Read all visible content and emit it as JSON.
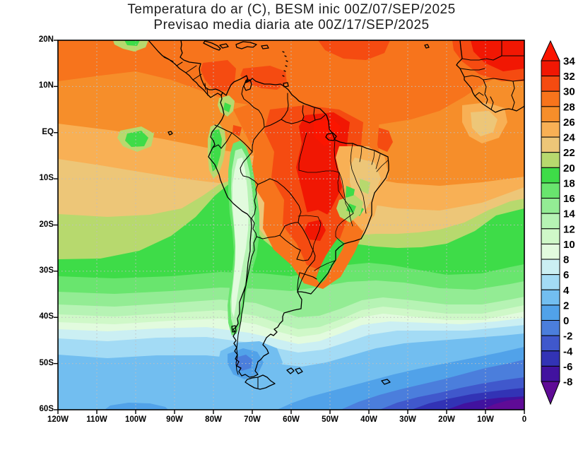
{
  "title": {
    "line1": "Temperatura do ar (C), BESM inic 00Z/07/SEP/2025",
    "line2": "Previsao media diaria ate 00Z/17/SEP/2025"
  },
  "axes": {
    "lat_ticks": [
      "20N",
      "10N",
      "EQ",
      "10S",
      "20S",
      "30S",
      "40S",
      "50S",
      "60S"
    ],
    "lon_ticks": [
      "120W",
      "110W",
      "100W",
      "90W",
      "80W",
      "70W",
      "60W",
      "50W",
      "40W",
      "30W",
      "20W",
      "10W",
      "0"
    ]
  },
  "colorbar": {
    "labels": [
      "34",
      "32",
      "30",
      "28",
      "26",
      "24",
      "22",
      "20",
      "18",
      "16",
      "14",
      "12",
      "10",
      "8",
      "6",
      "4",
      "2",
      "0",
      "-2",
      "-4",
      "-6",
      "-8"
    ],
    "colors_top_to_bottom": [
      "#FB1500",
      "#F11703",
      "#F54B11",
      "#F7741C",
      "#F68E2A",
      "#F8B055",
      "#EDC678",
      "#B7D96E",
      "#3EDC48",
      "#69E56E",
      "#93EC94",
      "#B6F3B4",
      "#CFF8C8",
      "#E2FBDE",
      "#CBEFF3",
      "#A3DBF5",
      "#72BEF0",
      "#51A2E9",
      "#4B7EDC",
      "#4058CC",
      "#3233B5",
      "#41129F",
      "#5F0B96"
    ]
  },
  "palette": {
    "above34": "#FB1500",
    "b32": "#F11703",
    "b30": "#F54B11",
    "b28": "#F7741C",
    "b26": "#F68E2A",
    "b24": "#F8B055",
    "b22": "#EDC678",
    "b20": "#B7D96E",
    "b18": "#3EDC48",
    "b16": "#69E56E",
    "b14": "#93EC94",
    "b12": "#B6F3B4",
    "b10": "#CFF8C8",
    "b8": "#E2FBDE",
    "b6": "#CBEFF3",
    "b4": "#A3DBF5",
    "b2": "#72BEF0",
    "b0": "#51A2E9",
    "bm2": "#4B7EDC",
    "bm4": "#4058CC",
    "bm6": "#3233B5",
    "bm8": "#41129F",
    "belowm8": "#5F0B96",
    "grid": "#bfbfbf",
    "frame": "#000000",
    "coast": "#000000"
  },
  "chart_data": {
    "type": "heatmap",
    "subtype": "filled-contour weather map",
    "title": "Temperatura do ar (C), BESM inic 00Z/07/SEP/2025",
    "subtitle": "Previsao media diaria ate 00Z/17/SEP/2025",
    "variable": "Temperatura do ar",
    "units": "C",
    "model": "BESM",
    "init_time": "00Z/07/SEP/2025",
    "valid_through": "00Z/17/SEP/2025",
    "domain": {
      "lon_range": [
        "120W",
        "0"
      ],
      "lat_range": [
        "60S",
        "20N"
      ],
      "graticule_deg": 10,
      "gridlines": "dotted"
    },
    "legend_position": "right",
    "contour_interval": 2,
    "levels": [
      -8,
      -6,
      -4,
      -2,
      0,
      2,
      4,
      6,
      8,
      10,
      12,
      14,
      16,
      18,
      20,
      22,
      24,
      26,
      28,
      30,
      32,
      34
    ],
    "colors_cold_to_hot": [
      "#5F0B96",
      "#41129F",
      "#3233B5",
      "#4058CC",
      "#4B7EDC",
      "#51A2E9",
      "#72BEF0",
      "#A3DBF5",
      "#CBEFF3",
      "#E2FBDE",
      "#CFF8C8",
      "#B6F3B4",
      "#93EC94",
      "#69E56E",
      "#3EDC48",
      "#B7D96E",
      "#EDC678",
      "#F8B055",
      "#F68E2A",
      "#F7741C",
      "#F54B11",
      "#F11703",
      "#FB1500"
    ],
    "readings": [
      {
        "region": "Amazon basin / Para, central-north Brazil (~55W 5S)",
        "value_c": "32 to 34"
      },
      {
        "region": "Caribbean and tropical Atlantic (~10N)",
        "value_c": "28 to 32"
      },
      {
        "region": "West Africa / Sahel (top-right corner)",
        "value_c": "32 to 34"
      },
      {
        "region": "Tropical Pacific and Atlantic oceans (EQ-10S)",
        "value_c": "26 to 28"
      },
      {
        "region": "Northeast Brazil interior (Bahia)",
        "value_c": "22 to 26"
      },
      {
        "region": "Paraguay / Mato Grosso do Sul hotspot (~58W 24S)",
        "value_c": "30 to 32"
      },
      {
        "region": "Andes cordillera stripe (~70W, 15S-40S)",
        "value_c": "8 to 12"
      },
      {
        "region": "Subtropical oceans (~30S)",
        "value_c": "18 to 20"
      },
      {
        "region": "Pampas / Uruguay (~35S)",
        "value_c": "14 to 18"
      },
      {
        "region": "South Pacific (~45S)",
        "value_c": "6 to 10"
      },
      {
        "region": "Tierra del Fuego pocket (~70W 53S)",
        "value_c": "-2 to 2"
      },
      {
        "region": "Southern Ocean, bottom-right corner (~58S 5W)",
        "value_c": "-8 and below"
      }
    ]
  }
}
